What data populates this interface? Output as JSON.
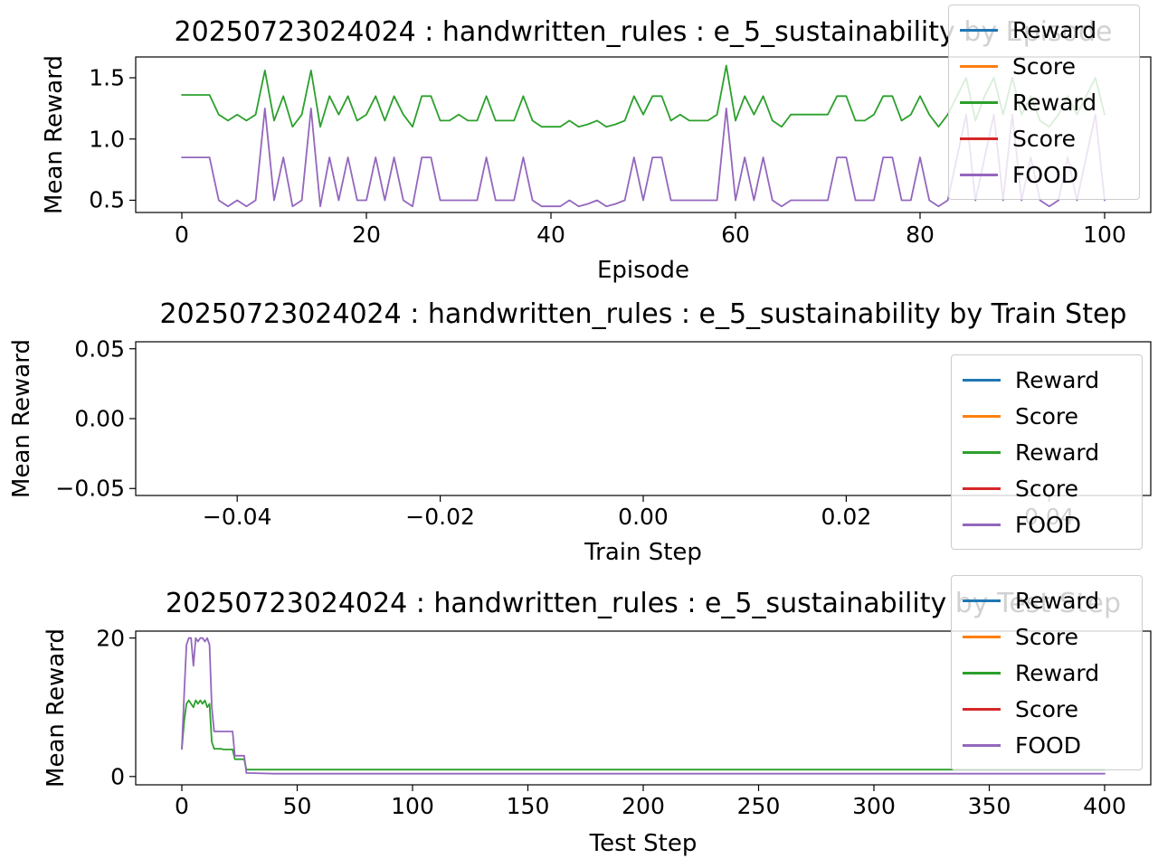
{
  "chart_data": [
    {
      "type": "line",
      "title": "20250723024024 : handwritten_rules : e_5_sustainability by Episode",
      "xlabel": "Episode",
      "ylabel": "Mean Reward",
      "xlim": [
        -5,
        105
      ],
      "ylim": [
        0.4,
        1.67
      ],
      "grid": false,
      "legend_position": "upper right",
      "xticks": {
        "values": [
          0,
          20,
          40,
          60,
          80,
          100
        ],
        "labels": [
          "0",
          "20",
          "40",
          "60",
          "80",
          "100"
        ]
      },
      "yticks": {
        "values": [
          0.5,
          1.0,
          1.5
        ],
        "labels": [
          "0.5",
          "1.0",
          "1.5"
        ]
      },
      "legend": [
        {
          "label": "Reward",
          "color": "#1f77b4"
        },
        {
          "label": "Score",
          "color": "#ff7f0e"
        },
        {
          "label": "Reward",
          "color": "#2ca02c"
        },
        {
          "label": "Score",
          "color": "#d62728"
        },
        {
          "label": "FOOD",
          "color": "#9467bd"
        }
      ],
      "series": [
        {
          "name": "Reward",
          "color": "#2ca02c",
          "y": [
            1.36,
            1.36,
            1.36,
            1.36,
            1.2,
            1.15,
            1.2,
            1.15,
            1.2,
            1.56,
            1.15,
            1.35,
            1.1,
            1.2,
            1.56,
            1.1,
            1.35,
            1.2,
            1.35,
            1.15,
            1.2,
            1.35,
            1.15,
            1.35,
            1.2,
            1.1,
            1.35,
            1.35,
            1.15,
            1.15,
            1.2,
            1.15,
            1.15,
            1.35,
            1.15,
            1.15,
            1.15,
            1.35,
            1.15,
            1.1,
            1.1,
            1.1,
            1.15,
            1.1,
            1.12,
            1.15,
            1.1,
            1.12,
            1.15,
            1.35,
            1.2,
            1.35,
            1.35,
            1.15,
            1.2,
            1.15,
            1.15,
            1.15,
            1.2,
            1.6,
            1.15,
            1.35,
            1.2,
            1.35,
            1.15,
            1.1,
            1.2,
            1.2,
            1.2,
            1.2,
            1.2,
            1.35,
            1.35,
            1.15,
            1.15,
            1.2,
            1.35,
            1.35,
            1.15,
            1.2,
            1.35,
            1.2,
            1.1,
            1.2,
            1.35,
            1.5,
            1.15,
            1.35,
            1.5,
            1.2,
            1.5,
            1.2,
            1.35,
            1.15,
            1.1,
            1.2,
            1.35,
            1.2,
            1.35,
            1.5,
            1.2
          ]
        },
        {
          "name": "FOOD",
          "color": "#9467bd",
          "y": [
            0.85,
            0.85,
            0.85,
            0.85,
            0.5,
            0.45,
            0.5,
            0.45,
            0.5,
            1.25,
            0.5,
            0.85,
            0.45,
            0.5,
            1.25,
            0.45,
            0.85,
            0.5,
            0.85,
            0.5,
            0.5,
            0.85,
            0.5,
            0.85,
            0.5,
            0.45,
            0.85,
            0.85,
            0.5,
            0.5,
            0.5,
            0.5,
            0.5,
            0.85,
            0.5,
            0.5,
            0.5,
            0.85,
            0.5,
            0.45,
            0.45,
            0.45,
            0.5,
            0.45,
            0.47,
            0.5,
            0.45,
            0.47,
            0.5,
            0.85,
            0.5,
            0.85,
            0.85,
            0.5,
            0.5,
            0.5,
            0.5,
            0.5,
            0.5,
            1.25,
            0.5,
            0.85,
            0.5,
            0.85,
            0.5,
            0.45,
            0.5,
            0.5,
            0.5,
            0.5,
            0.5,
            0.85,
            0.85,
            0.5,
            0.5,
            0.5,
            0.85,
            0.85,
            0.5,
            0.5,
            0.85,
            0.5,
            0.45,
            0.5,
            0.85,
            1.2,
            0.5,
            0.85,
            1.2,
            0.5,
            1.2,
            0.5,
            0.85,
            0.5,
            0.45,
            0.5,
            0.85,
            0.5,
            0.85,
            1.2,
            0.5
          ]
        }
      ]
    },
    {
      "type": "line",
      "title": "20250723024024 : handwritten_rules : e_5_sustainability by Train Step",
      "xlabel": "Train Step",
      "ylabel": "Mean Reward",
      "xlim": [
        -0.05,
        0.05
      ],
      "ylim": [
        -0.055,
        0.055
      ],
      "grid": false,
      "legend_position": "right",
      "xticks": {
        "values": [
          -0.04,
          -0.02,
          0,
          0.02,
          0.04
        ],
        "labels": [
          "−0.04",
          "−0.02",
          "0.00",
          "0.02",
          "0.04"
        ]
      },
      "yticks": {
        "values": [
          -0.05,
          0,
          0.05
        ],
        "labels": [
          "−0.05",
          "0.00",
          "0.05"
        ]
      },
      "legend": [
        {
          "label": "Reward",
          "color": "#1f77b4"
        },
        {
          "label": "Score",
          "color": "#ff7f0e"
        },
        {
          "label": "Reward",
          "color": "#2ca02c"
        },
        {
          "label": "Score",
          "color": "#d62728"
        },
        {
          "label": "FOOD",
          "color": "#9467bd"
        }
      ],
      "series": []
    },
    {
      "type": "line",
      "title": "20250723024024 : handwritten_rules : e_5_sustainability by Test Step",
      "xlabel": "Test Step",
      "ylabel": "Mean Reward",
      "xlim": [
        -20,
        420
      ],
      "ylim": [
        -1.2,
        21
      ],
      "grid": false,
      "legend_position": "upper right",
      "xticks": {
        "values": [
          0,
          50,
          100,
          150,
          200,
          250,
          300,
          350,
          400
        ],
        "labels": [
          "0",
          "50",
          "100",
          "150",
          "200",
          "250",
          "300",
          "350",
          "400"
        ]
      },
      "yticks": {
        "values": [
          0,
          20
        ],
        "labels": [
          "0",
          "20"
        ]
      },
      "legend": [
        {
          "label": "Reward",
          "color": "#1f77b4"
        },
        {
          "label": "Score",
          "color": "#ff7f0e"
        },
        {
          "label": "Reward",
          "color": "#2ca02c"
        },
        {
          "label": "Score",
          "color": "#d62728"
        },
        {
          "label": "FOOD",
          "color": "#9467bd"
        }
      ],
      "series": [
        {
          "name": "Reward",
          "color": "#2ca02c",
          "x": [
            0,
            1,
            2,
            3,
            4,
            5,
            6,
            7,
            8,
            9,
            10,
            11,
            12,
            13,
            14,
            15,
            16,
            17,
            18,
            19,
            20,
            21,
            22,
            23,
            24,
            25,
            26,
            27,
            28,
            29,
            30,
            40,
            50,
            100,
            150,
            200,
            250,
            300,
            350,
            400
          ],
          "y": [
            4,
            8,
            10.5,
            11,
            10.5,
            10,
            11,
            10.5,
            11,
            10.5,
            11,
            10,
            10.5,
            5,
            4,
            4,
            4,
            4,
            3.9,
            3.9,
            3.9,
            3.9,
            3.9,
            2.5,
            2.5,
            2.5,
            2.5,
            2.5,
            1,
            1,
            1,
            1,
            1,
            1,
            1,
            1,
            1,
            1,
            1,
            1
          ]
        },
        {
          "name": "FOOD",
          "color": "#9467bd",
          "x": [
            0,
            1,
            2,
            3,
            4,
            5,
            6,
            7,
            8,
            9,
            10,
            11,
            12,
            13,
            14,
            15,
            16,
            17,
            18,
            19,
            20,
            21,
            22,
            23,
            24,
            25,
            26,
            27,
            28,
            29,
            30,
            40,
            50,
            100,
            150,
            200,
            250,
            300,
            350,
            400
          ],
          "y": [
            4,
            12,
            19,
            20,
            20,
            16,
            20,
            19.5,
            20,
            20,
            19.5,
            20,
            19,
            10,
            6.5,
            6.5,
            6.5,
            6.5,
            6.5,
            6.5,
            6.5,
            6.5,
            6.5,
            3,
            3,
            3,
            3,
            3,
            0.5,
            0.5,
            0.5,
            0.4,
            0.4,
            0.4,
            0.4,
            0.4,
            0.4,
            0.4,
            0.4,
            0.4
          ]
        }
      ]
    }
  ]
}
